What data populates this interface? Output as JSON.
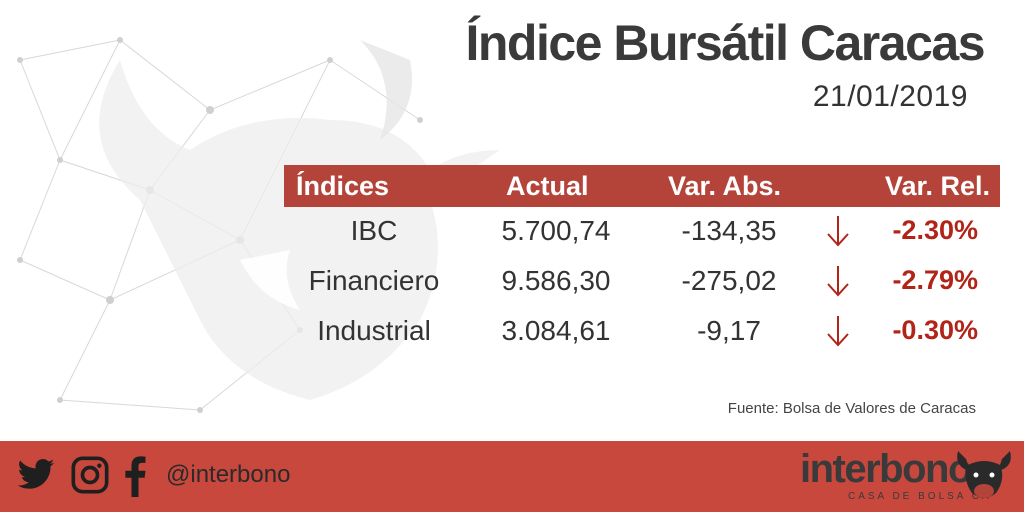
{
  "header": {
    "title": "Índice Bursátil Caracas",
    "date": "21/01/2019"
  },
  "table": {
    "columns": [
      "Índices",
      "Actual",
      "Var. Abs.",
      "Var. Rel."
    ],
    "rows": [
      {
        "name": "IBC",
        "actual": "5.700,74",
        "abs": "-134,35",
        "direction": "down",
        "rel": "-2.30%"
      },
      {
        "name": "Financiero",
        "actual": "9.586,30",
        "abs": "-275,02",
        "direction": "down",
        "rel": "-2.79%"
      },
      {
        "name": "Industrial",
        "actual": "3.084,61",
        "abs": "-9,17",
        "direction": "down",
        "rel": "-0.30%"
      }
    ]
  },
  "source": "Fuente: Bolsa de Valores de Caracas",
  "footer": {
    "social_icons": [
      "twitter-icon",
      "instagram-icon",
      "facebook-icon"
    ],
    "handle": "@interbono",
    "brand": "interbono",
    "brand_sub": "CASA DE BOLSA CA"
  },
  "colors": {
    "accent": "#c8483e",
    "header_bar": "#b4443a",
    "negative": "#b22418",
    "text": "#333333"
  }
}
